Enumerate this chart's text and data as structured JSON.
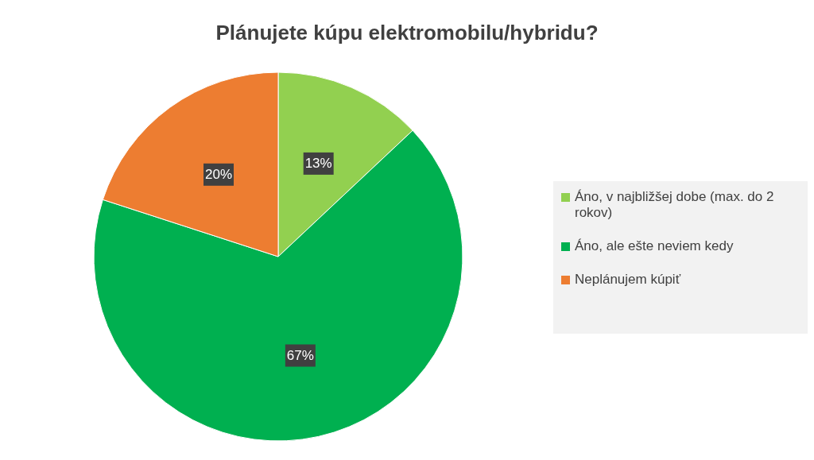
{
  "chart_data": {
    "type": "pie",
    "title": "Plánujete kúpu elektromobilu/hybridu?",
    "categories": [
      "Áno, v najbližšej dobe (max. do 2 rokov)",
      "Áno, ale ešte neviem kedy",
      "Neplánujem kúpiť"
    ],
    "values": [
      13,
      67,
      20
    ],
    "colors": [
      "#92d050",
      "#00b050",
      "#ed7d31"
    ],
    "value_labels": [
      "13%",
      "67%",
      "20%"
    ],
    "legend": "right"
  }
}
